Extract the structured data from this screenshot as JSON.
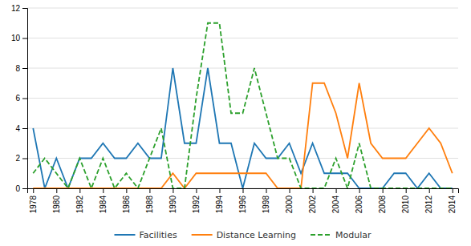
{
  "chart_data": {
    "type": "line",
    "x": [
      1978,
      1979,
      1980,
      1981,
      1982,
      1983,
      1984,
      1985,
      1986,
      1987,
      1988,
      1989,
      1990,
      1991,
      1992,
      1993,
      1994,
      1995,
      1996,
      1997,
      1998,
      1999,
      2000,
      2001,
      2002,
      2003,
      2004,
      2005,
      2006,
      2007,
      2008,
      2009,
      2010,
      2011,
      2012,
      2013,
      2014
    ],
    "series": [
      {
        "name": "Facilities",
        "line_style": "solid",
        "values": [
          4,
          0,
          2,
          0,
          2,
          2,
          3,
          2,
          2,
          3,
          2,
          2,
          8,
          3,
          3,
          8,
          3,
          3,
          0,
          3,
          2,
          2,
          3,
          1,
          3,
          1,
          1,
          1,
          0,
          0,
          0,
          1,
          1,
          0,
          1,
          0,
          0
        ]
      },
      {
        "name": "Distance Learning",
        "line_style": "solid",
        "values": [
          0,
          0,
          0,
          0,
          0,
          0,
          0,
          0,
          0,
          0,
          0,
          0,
          1,
          0,
          1,
          1,
          1,
          1,
          1,
          1,
          1,
          0,
          0,
          0,
          7,
          7,
          5,
          2,
          7,
          3,
          2,
          2,
          2,
          3,
          4,
          3,
          1
        ]
      },
      {
        "name": "Modular",
        "line_style": "dashed",
        "values": [
          1,
          2,
          1,
          0,
          2,
          0,
          2,
          0,
          1,
          0,
          2,
          4,
          0,
          0,
          6,
          11,
          11,
          5,
          5,
          8,
          5,
          2,
          2,
          0,
          0,
          0,
          2,
          0,
          3,
          0,
          0,
          0,
          0,
          0,
          0,
          0,
          0
        ]
      }
    ],
    "xlim": [
      1977.5,
      2014.5
    ],
    "xticks": [
      1978,
      1980,
      1982,
      1984,
      1986,
      1988,
      1990,
      1992,
      1994,
      1996,
      1998,
      2000,
      2002,
      2004,
      2006,
      2008,
      2010,
      2012,
      2014
    ],
    "ylim": [
      0,
      12
    ],
    "yticks": [
      0,
      2,
      4,
      6,
      8,
      10,
      12
    ],
    "grid": "y",
    "legend": "bottom"
  }
}
